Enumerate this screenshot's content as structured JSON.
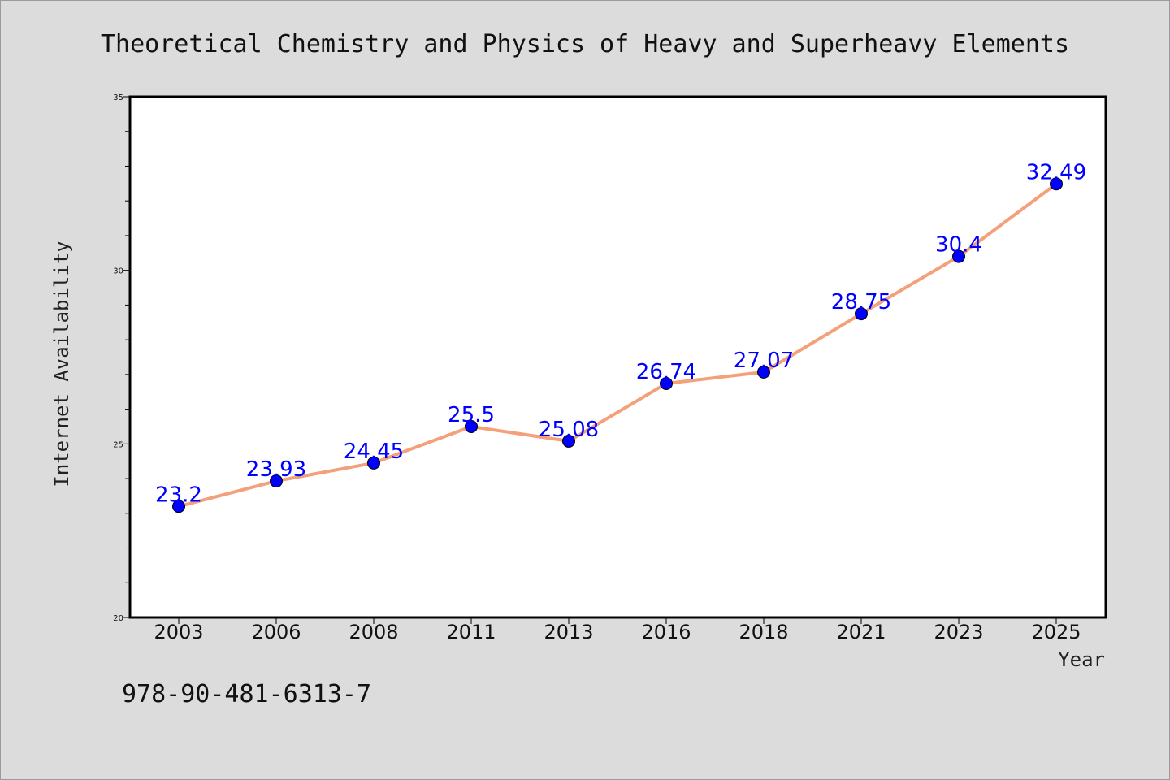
{
  "chart_data": {
    "type": "line",
    "title": "Theoretical Chemistry and Physics of Heavy and Superheavy Elements",
    "xlabel": "Year",
    "ylabel": "Internet Availability",
    "categories": [
      "2003",
      "2006",
      "2008",
      "2011",
      "2013",
      "2016",
      "2018",
      "2021",
      "2023",
      "2025"
    ],
    "series": [
      {
        "values": [
          23.2,
          23.93,
          24.45,
          25.5,
          25.08,
          26.74,
          27.07,
          28.75,
          30.4,
          32.49
        ],
        "labels": [
          "23.2",
          "23.93",
          "24.45",
          "25.5",
          "25.08",
          "26.74",
          "27.07",
          "28.75",
          "30.4",
          "32.49"
        ],
        "line_color": "#f4a07a",
        "marker_color": "#0000ff"
      }
    ],
    "ylim": [
      20,
      35
    ],
    "yticks": [
      "20",
      "25",
      "30",
      "35"
    ],
    "grid": false,
    "data_label_color": "#0000ff"
  },
  "footer_text": "978-90-481-6313-7"
}
